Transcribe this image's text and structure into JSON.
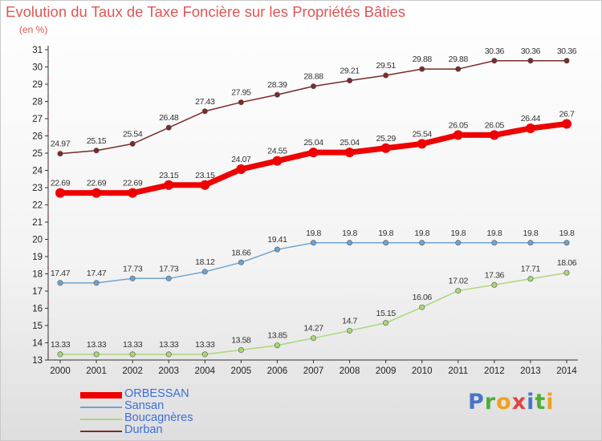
{
  "title": "Evolution du Taux de Taxe Foncière sur les Propriétés Bâties",
  "unit": "(en %)",
  "brand": {
    "text": "Proxiti",
    "letter_colors": [
      "#4a74c8",
      "#4caf3a",
      "#f0a020",
      "#e04545",
      "#4a74c8",
      "#4caf3a",
      "#f0a020"
    ]
  },
  "chart_data": {
    "type": "line",
    "x": [
      "2000",
      "2001",
      "2002",
      "2003",
      "2004",
      "2005",
      "2006",
      "2007",
      "2008",
      "2009",
      "2010",
      "2011",
      "2012",
      "2013",
      "2014"
    ],
    "ylim": [
      13,
      31
    ],
    "yticks": [
      13,
      14,
      15,
      16,
      17,
      18,
      19,
      20,
      21,
      22,
      23,
      24,
      25,
      26,
      27,
      28,
      29,
      30,
      31
    ],
    "grid": false,
    "legend_position": "bottom-left",
    "series": [
      {
        "name": "ORBESSAN",
        "color": "#ee0000",
        "emphasized": true,
        "values": [
          22.69,
          22.69,
          22.69,
          23.15,
          23.15,
          24.07,
          24.55,
          25.04,
          25.04,
          25.29,
          25.54,
          26.05,
          26.05,
          26.44,
          26.7
        ],
        "labels": [
          "22.69",
          "22.69",
          "22.69",
          "23.15",
          "23.15",
          "24.07",
          "24.55",
          "25.04",
          "25.04",
          "25.29",
          "25.54",
          "26.05",
          "26.05",
          "26.44",
          "26.7"
        ]
      },
      {
        "name": "Sansan",
        "color": "#6fa3cf",
        "emphasized": false,
        "values": [
          17.47,
          17.47,
          17.73,
          17.73,
          18.12,
          18.66,
          19.41,
          19.8,
          19.8,
          19.8,
          19.8,
          19.8,
          19.8,
          19.8,
          19.8
        ],
        "labels": [
          "17.47",
          "17.47",
          "17.73",
          "17.73",
          "18.12",
          "18.66",
          "19.41",
          "19.8",
          "19.8",
          "19.8",
          "19.8",
          "19.8",
          "19.8",
          "19.8",
          "19.8"
        ]
      },
      {
        "name": "Boucagnères",
        "color": "#a8d878",
        "emphasized": false,
        "values": [
          13.33,
          13.33,
          13.33,
          13.33,
          13.33,
          13.58,
          13.85,
          14.27,
          14.7,
          15.15,
          16.06,
          17.02,
          17.36,
          17.71,
          18.06
        ],
        "labels": [
          "13.33",
          "13.33",
          "13.33",
          "13.33",
          "13.33",
          "13.58",
          "13.85",
          "14.27",
          "14.7",
          "15.15",
          "16.06",
          "17.02",
          "17.36",
          "17.71",
          "18.06"
        ]
      },
      {
        "name": "Durban",
        "color": "#7a2b2b",
        "emphasized": false,
        "values": [
          24.97,
          25.15,
          25.54,
          26.48,
          27.43,
          27.95,
          28.39,
          28.88,
          29.21,
          29.51,
          29.88,
          29.88,
          30.36,
          30.36,
          30.36
        ],
        "labels": [
          "24.97",
          "25.15",
          "25.54",
          "26.48",
          "27.43",
          "27.95",
          "28.39",
          "28.88",
          "29.21",
          "29.51",
          "29.88",
          "29.88",
          "30.36",
          "30.36",
          "30.36"
        ]
      }
    ]
  }
}
